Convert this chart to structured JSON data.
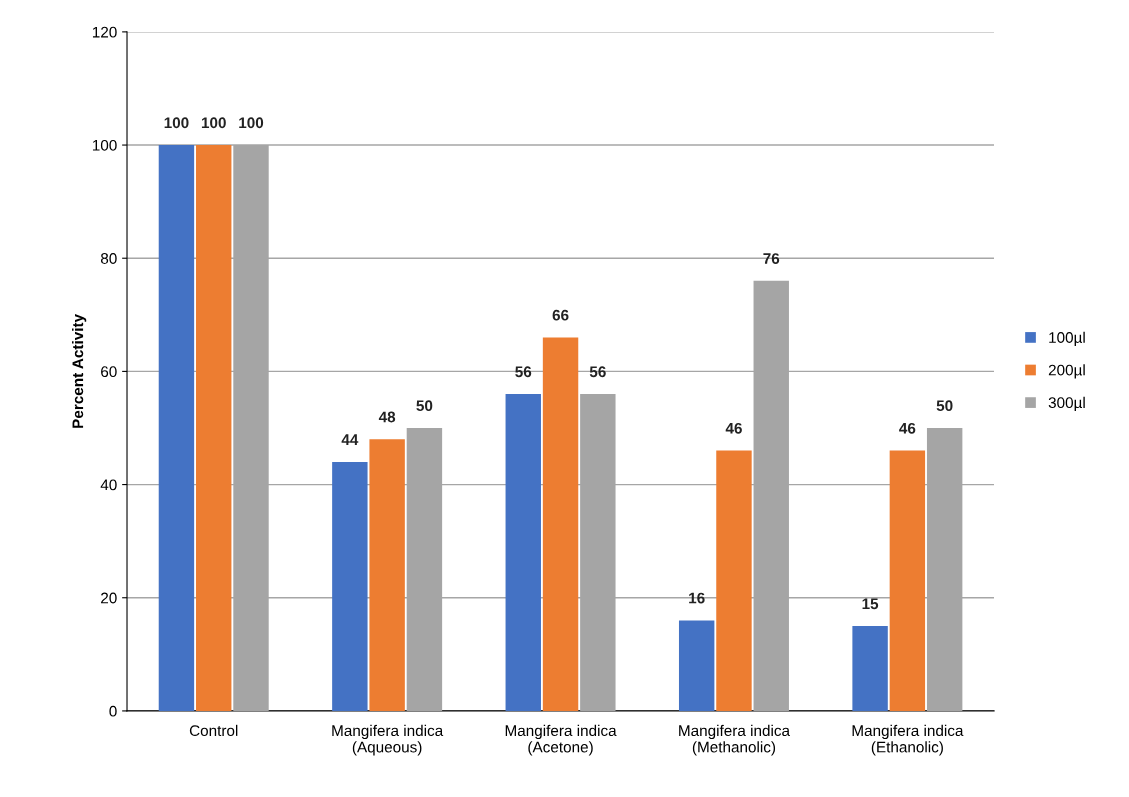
{
  "chart_data": {
    "type": "bar",
    "ylabel": "Percent Activity",
    "categories": [
      "Control",
      "Mangifera indica\n(Aqueous)",
      "Mangifera indica\n(Acetone)",
      "Mangifera indica\n(Methanolic)",
      "Mangifera indica\n(Ethanolic)"
    ],
    "series": [
      {
        "name": "100µl",
        "color": "#4472c4",
        "values": [
          100,
          44,
          56,
          16,
          15
        ]
      },
      {
        "name": "200µl",
        "color": "#ed7d31",
        "values": [
          100,
          48,
          66,
          46,
          46
        ]
      },
      {
        "name": "300µl",
        "color": "#a5a5a5",
        "values": [
          100,
          50,
          56,
          76,
          50
        ]
      }
    ],
    "ylim": [
      0,
      120
    ],
    "yticks": [
      0,
      20,
      40,
      60,
      80,
      100,
      120
    ],
    "grid": "y",
    "legend": "right",
    "data_labels": true
  }
}
